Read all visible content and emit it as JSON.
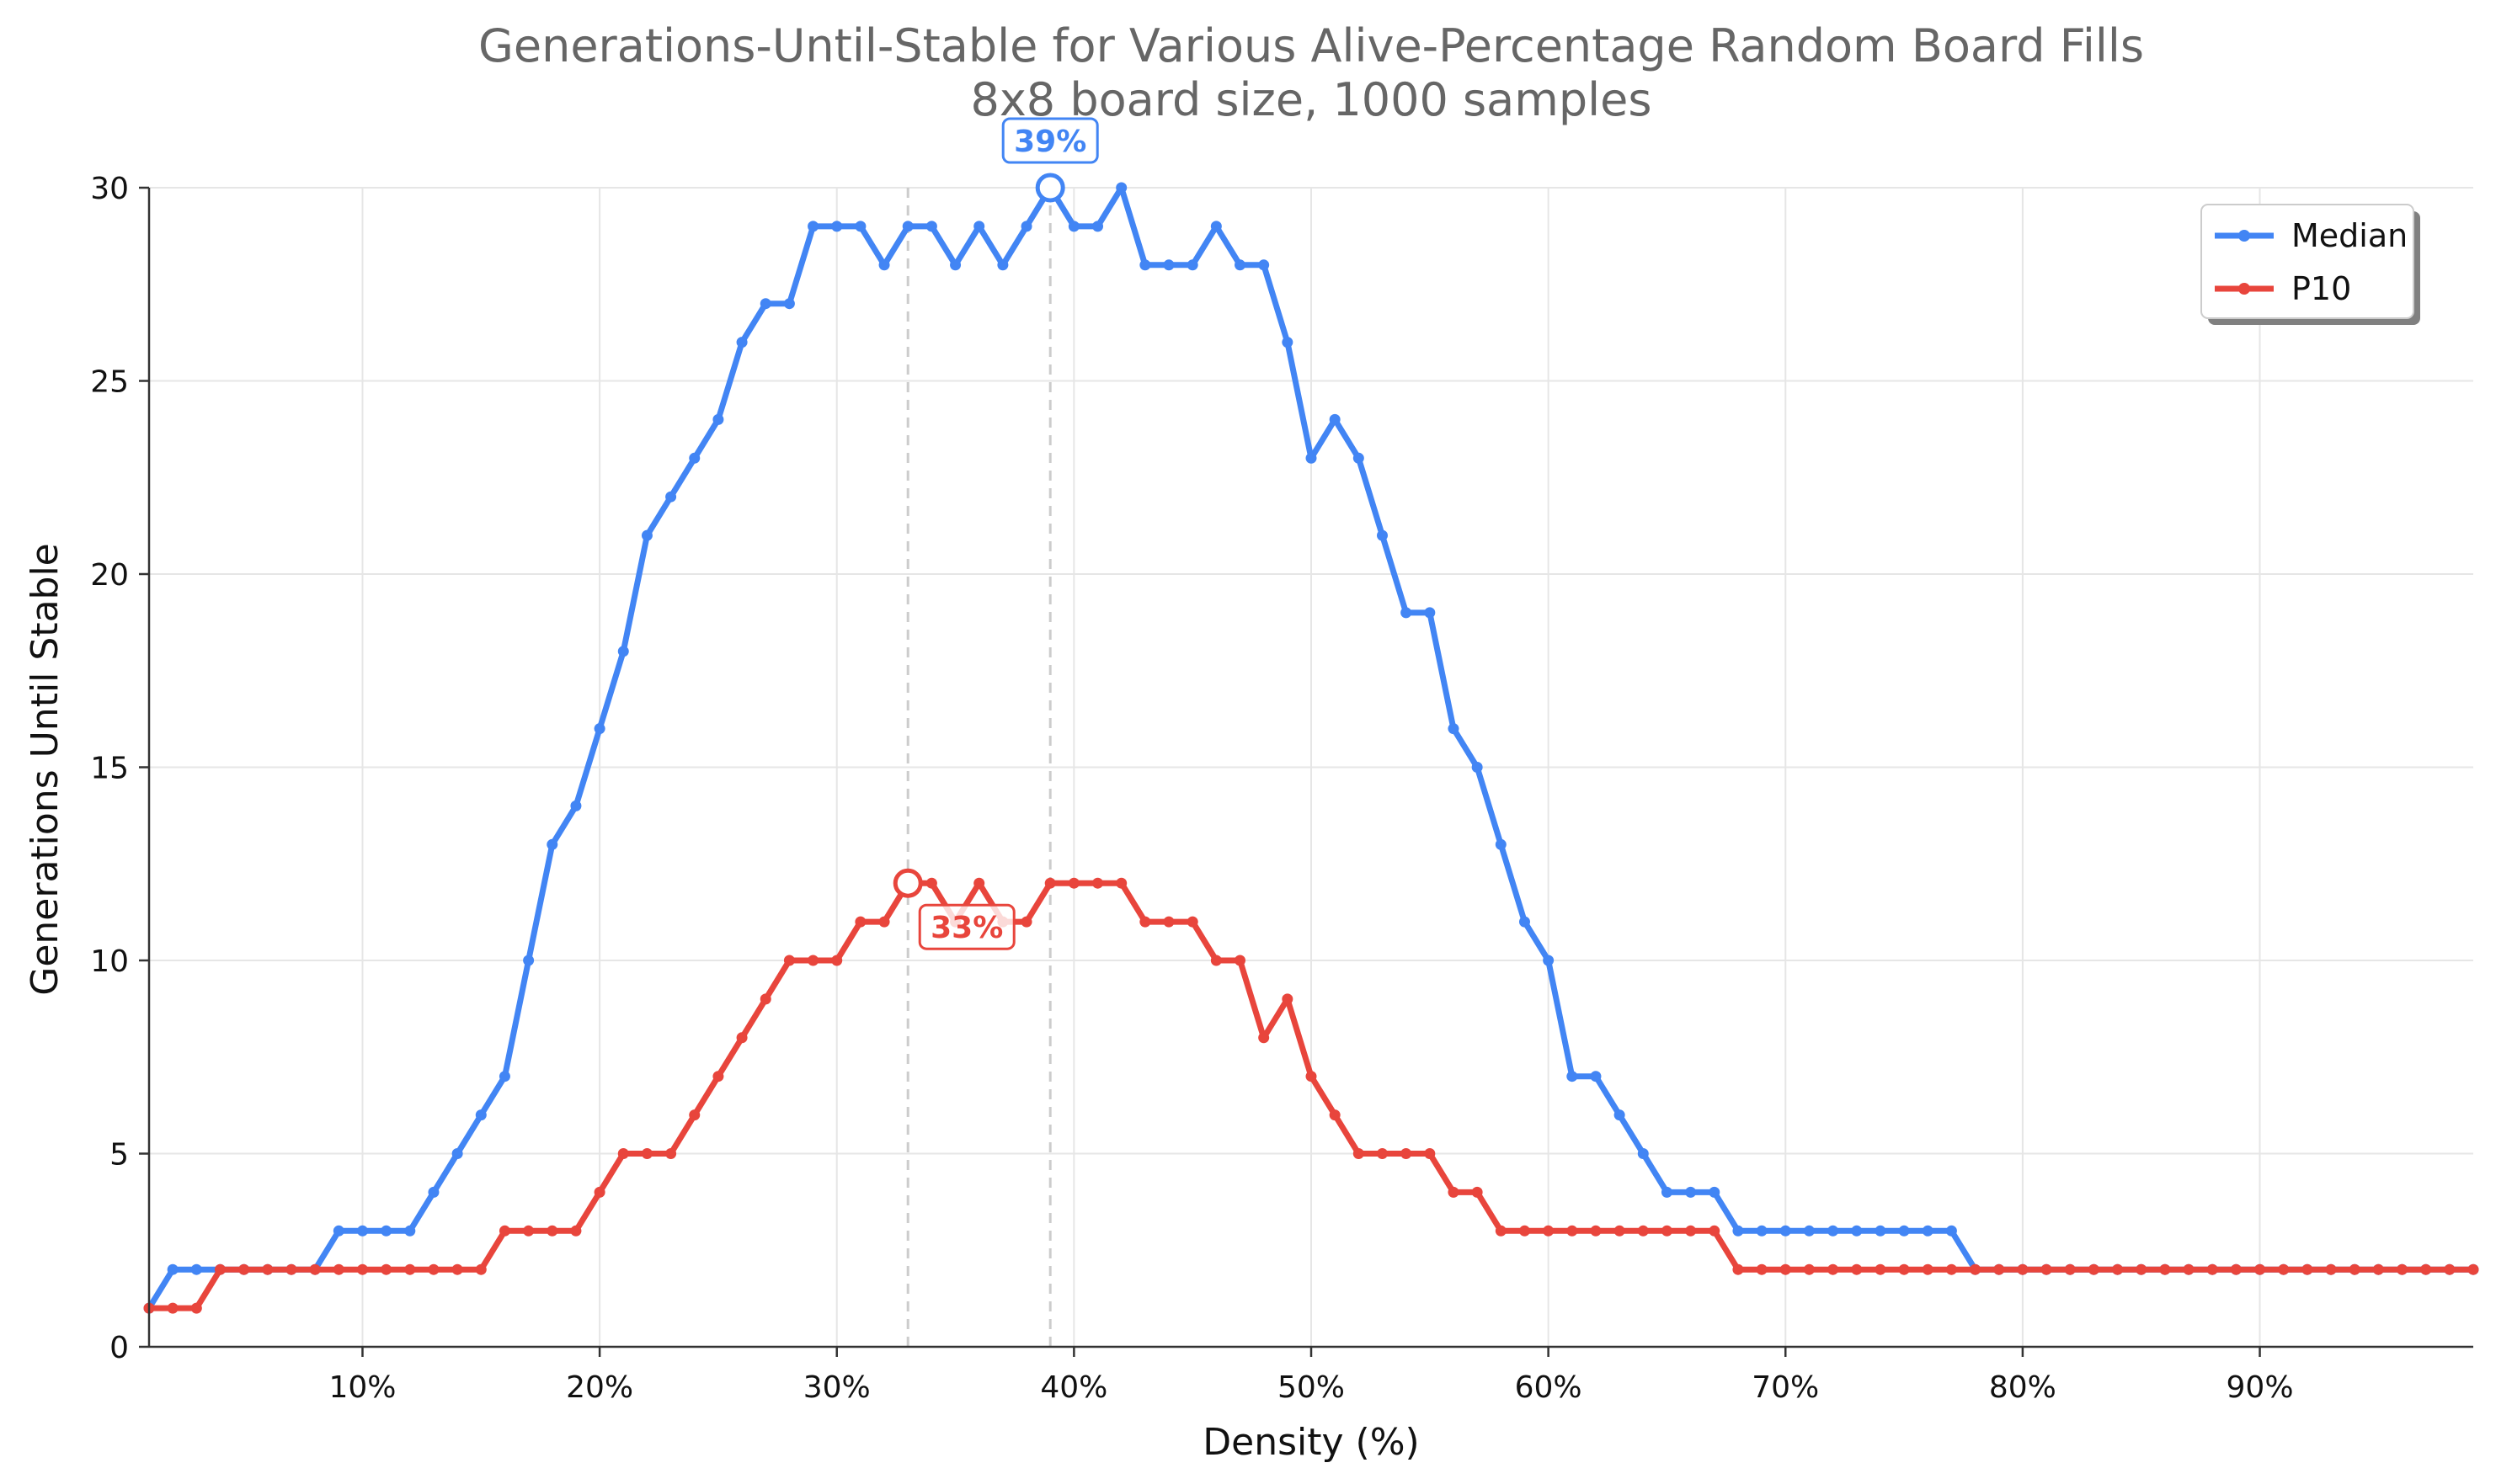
{
  "chart_data": {
    "type": "line",
    "title": "Generations-Until-Stable for Various Alive-Percentage Random Board Fills",
    "subtitle": "8x8 board size, 1000 samples",
    "xlabel": "Density (%)",
    "ylabel": "Generations Until Stable",
    "xlim": [
      1,
      99
    ],
    "ylim": [
      0,
      30
    ],
    "x_ticks": [
      10,
      20,
      30,
      40,
      50,
      60,
      70,
      80,
      90
    ],
    "x_tick_labels": [
      "10%",
      "20%",
      "30%",
      "40%",
      "50%",
      "60%",
      "70%",
      "80%",
      "90%"
    ],
    "y_ticks": [
      0,
      5,
      10,
      15,
      20,
      25,
      30
    ],
    "y_tick_labels": [
      "0",
      "5",
      "10",
      "15",
      "20",
      "25",
      "30"
    ],
    "grid": true,
    "legend_position": "top-right",
    "x": [
      1,
      2,
      3,
      4,
      5,
      6,
      7,
      8,
      9,
      10,
      11,
      12,
      13,
      14,
      15,
      16,
      17,
      18,
      19,
      20,
      21,
      22,
      23,
      24,
      25,
      26,
      27,
      28,
      29,
      30,
      31,
      32,
      33,
      34,
      35,
      36,
      37,
      38,
      39,
      40,
      41,
      42,
      43,
      44,
      45,
      46,
      47,
      48,
      49,
      50,
      51,
      52,
      53,
      54,
      55,
      56,
      57,
      58,
      59,
      60,
      61,
      62,
      63,
      64,
      65,
      66,
      67,
      68,
      69,
      70,
      71,
      72,
      73,
      74,
      75,
      76,
      77,
      78,
      79,
      80,
      81,
      82,
      83,
      84,
      85,
      86,
      87,
      88,
      89,
      90,
      91,
      92,
      93,
      94,
      95,
      96,
      97,
      98,
      99
    ],
    "series": [
      {
        "name": "Median",
        "color": "#4285f4",
        "values": [
          1,
          2,
          2,
          2,
          2,
          2,
          2,
          2,
          3,
          3,
          3,
          3,
          4,
          5,
          6,
          7,
          10,
          13,
          14,
          16,
          18,
          21,
          22,
          23,
          24,
          26,
          27,
          27,
          29,
          29,
          29,
          28,
          29,
          29,
          28,
          29,
          28,
          29,
          30,
          29,
          29,
          30,
          28,
          28,
          28,
          29,
          28,
          28,
          26,
          23,
          24,
          23,
          21,
          19,
          19,
          16,
          15,
          13,
          11,
          10,
          7,
          7,
          6,
          5,
          4,
          4,
          4,
          3,
          3,
          3,
          3,
          3,
          3,
          3,
          3,
          3,
          3,
          2,
          2,
          2,
          2,
          2,
          2,
          2,
          2,
          2,
          2,
          2,
          2,
          2,
          2,
          2,
          2,
          2,
          2,
          2,
          2,
          2,
          2
        ]
      },
      {
        "name": "P10",
        "color": "#e8453c",
        "values": [
          1,
          1,
          1,
          2,
          2,
          2,
          2,
          2,
          2,
          2,
          2,
          2,
          2,
          2,
          2,
          3,
          3,
          3,
          3,
          4,
          5,
          5,
          5,
          6,
          7,
          8,
          9,
          10,
          10,
          10,
          11,
          11,
          12,
          12,
          11,
          12,
          11,
          11,
          12,
          12,
          12,
          12,
          11,
          11,
          11,
          10,
          10,
          8,
          9,
          7,
          6,
          5,
          5,
          5,
          5,
          4,
          4,
          3,
          3,
          3,
          3,
          3,
          3,
          3,
          3,
          3,
          3,
          2,
          2,
          2,
          2,
          2,
          2,
          2,
          2,
          2,
          2,
          2,
          2,
          2,
          2,
          2,
          2,
          2,
          2,
          2,
          2,
          2,
          2,
          2,
          2,
          2,
          2,
          2,
          2,
          2,
          2,
          2,
          2
        ]
      }
    ],
    "annotations": [
      {
        "series": "Median",
        "x": 39,
        "y": 30,
        "label": "39%",
        "color": "#4285f4",
        "placement": "above"
      },
      {
        "series": "P10",
        "x": 33,
        "y": 12,
        "label": "33%",
        "color": "#e8453c",
        "placement": "below-right"
      }
    ]
  }
}
